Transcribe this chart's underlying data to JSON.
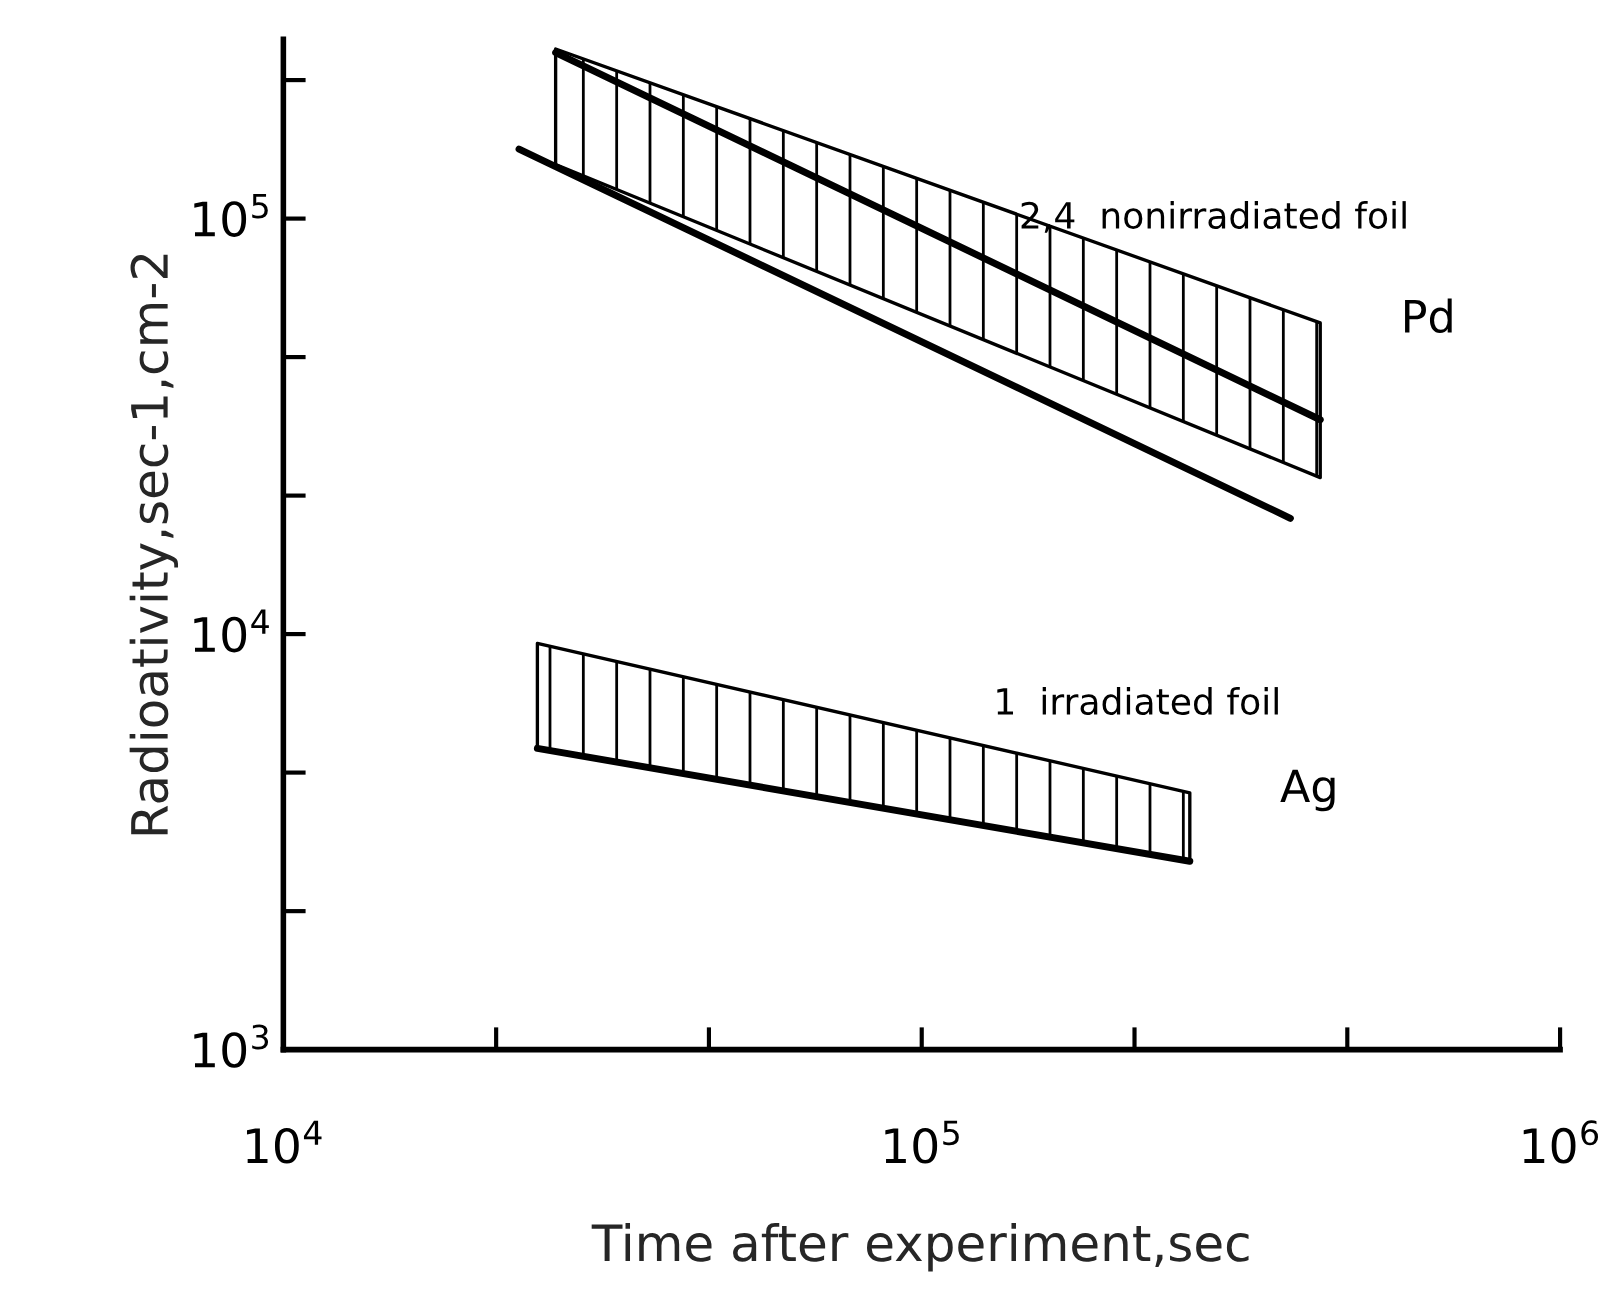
{
  "chart_data": {
    "type": "line",
    "xlabel": "Time after experiment,sec",
    "ylabel": "Radioativity,sec-1,cm-2",
    "log": "xy",
    "xlim": [
      10000,
      1000000
    ],
    "ylim": [
      1000,
      270000
    ],
    "xticks": [
      {
        "value": 10000,
        "label": "10$^{4}$"
      },
      {
        "value": 21544,
        "label": null
      },
      {
        "value": 46416,
        "label": null
      },
      {
        "value": 100000,
        "label": "10$^{5}$"
      },
      {
        "value": 215443,
        "label": null
      },
      {
        "value": 464159,
        "label": null
      },
      {
        "value": 1000000,
        "label": "10$^{6}$"
      }
    ],
    "yticks": [
      {
        "value": 1000,
        "label": "10$^{3}$"
      },
      {
        "value": 2154,
        "label": null
      },
      {
        "value": 4642,
        "label": null
      },
      {
        "value": 10000,
        "label": "10$^{4}$"
      },
      {
        "value": 21544,
        "label": null
      },
      {
        "value": 46416,
        "label": null
      },
      {
        "value": 100000,
        "label": "10$^{5}$"
      },
      {
        "value": 215443,
        "label": null
      }
    ],
    "grid": false,
    "legend": false,
    "marker": "none",
    "line_style": "solid",
    "series": [
      {
        "color": "#000000",
        "x": [
          26700,
          421000
        ],
        "values": [
          251000,
          32800
        ],
        "lower": [
          135000,
          23800
        ],
        "upper": [
          256000,
          56100
        ]
      },
      {
        "color": "#000000",
        "x": [
          23400,
          378000
        ],
        "values": [
          147000,
          19000
        ]
      },
      {
        "color": "#000000",
        "x": [
          25000,
          263000
        ],
        "values": [
          5310,
          2840
        ],
        "lower": [
          5310,
          2840
        ],
        "upper": [
          9500,
          4150
        ]
      }
    ],
    "annotations": [
      {
        "text": "2,4  nonirradiated foil",
        "x": 142000,
        "y": 100000
      },
      "Pd",
      "1  irradiated foil",
      "Ag"
    ]
  }
}
